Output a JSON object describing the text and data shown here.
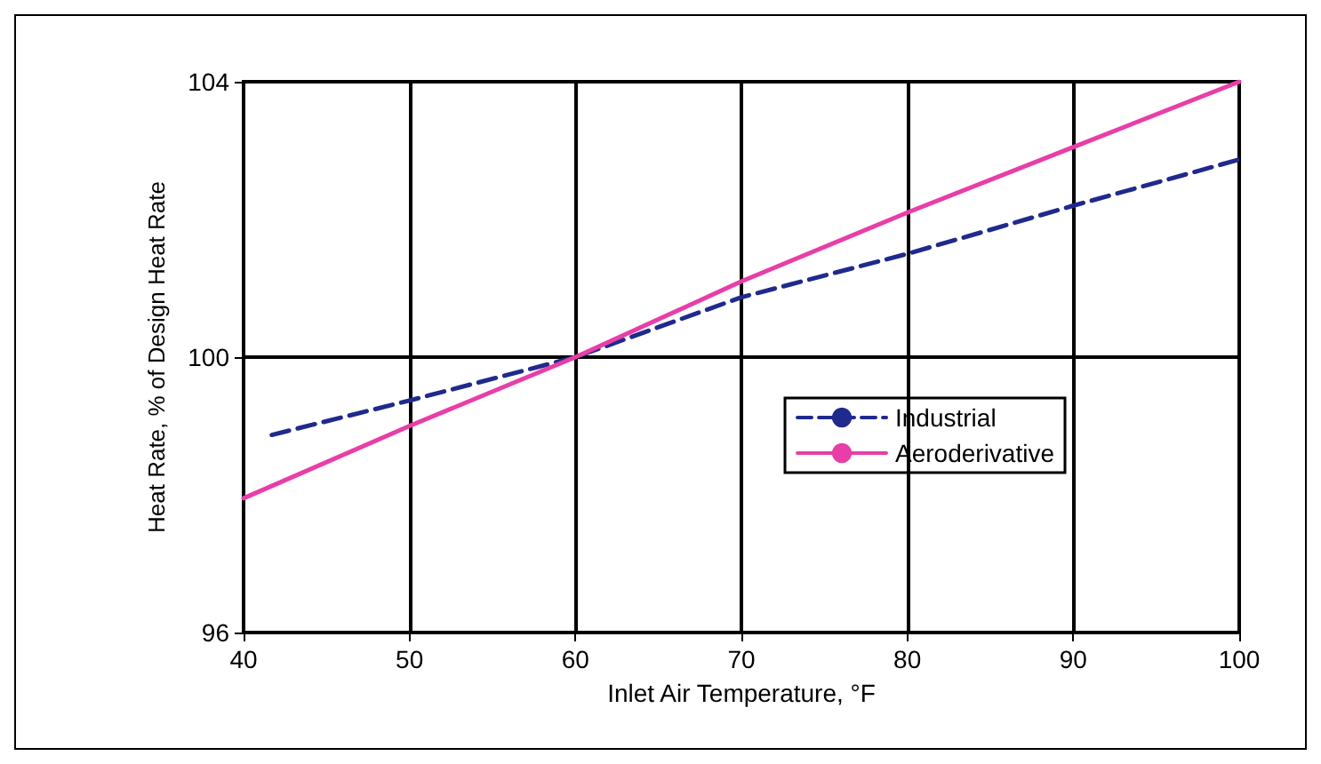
{
  "chart_data": {
    "type": "line",
    "xlabel": "Inlet Air Temperature, °F",
    "ylabel": "Heat Rate, % of Design Heat Rate",
    "xlim": [
      40,
      100
    ],
    "xticks": [
      40,
      50,
      60,
      70,
      80,
      90,
      100
    ],
    "ylim": [
      96,
      104
    ],
    "yticks": [
      96,
      100,
      104
    ],
    "grid": true,
    "legend": "right",
    "series": [
      {
        "name": "Industrial",
        "color": "#1f2a8c",
        "line_style": "dashed",
        "x": [
          41.7,
          50,
          60,
          70,
          80,
          90,
          100
        ],
        "values": [
          98.87,
          99.37,
          100,
          100.87,
          101.5,
          102.2,
          102.87
        ]
      },
      {
        "name": "Aeroderivative",
        "color": "#e83ea8",
        "line_style": "solid",
        "x": [
          40,
          50,
          60,
          70,
          80,
          90,
          100
        ],
        "values": [
          97.95,
          99.0,
          100,
          101.1,
          102.1,
          103.05,
          104
        ]
      }
    ]
  }
}
